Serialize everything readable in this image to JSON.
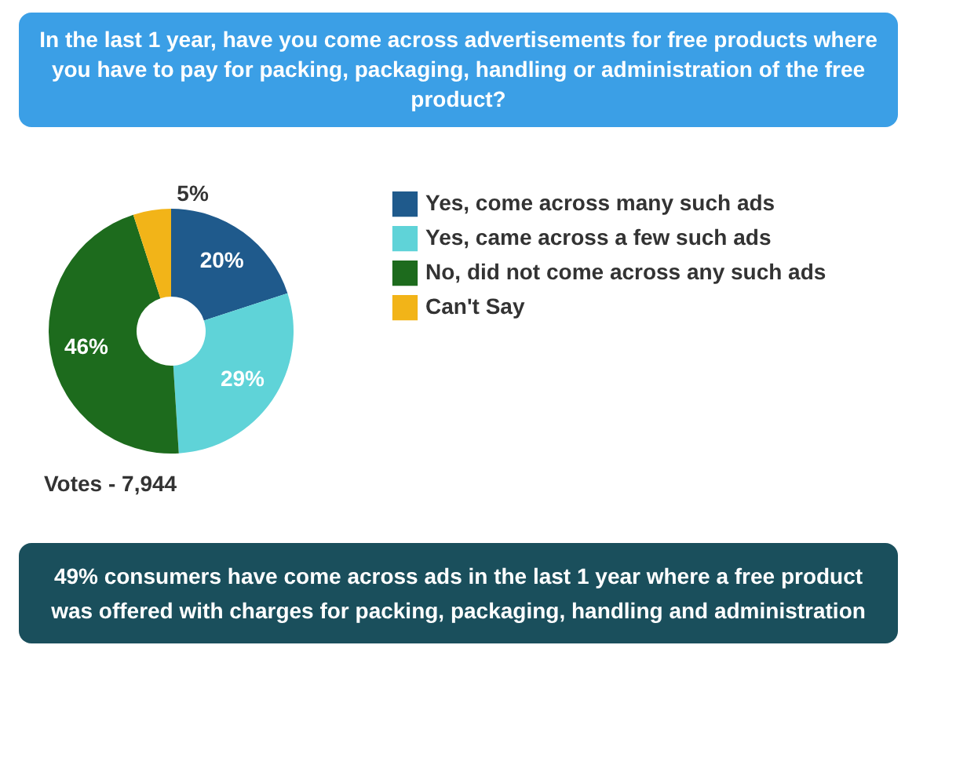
{
  "chart_data": {
    "type": "donut",
    "title": "In the last 1 year, have you come across advertisements for free products where you have to pay for packing, packaging, handling or administration of the free product?",
    "categories": [
      "Yes, come across many such ads",
      "Yes, came across a few such ads",
      "No, did not come across any such ads",
      "Can't Say"
    ],
    "values": [
      20,
      29,
      46,
      5
    ],
    "colors": [
      "#1f5a8c",
      "#5fd3d8",
      "#1d6b1d",
      "#f2b418"
    ],
    "value_labels": [
      "20%",
      "29%",
      "46%",
      "5%"
    ],
    "legend": "right",
    "annotations": [
      "Votes - 7,944",
      "49% consumers have come across ads in the last 1 year where a free product was offered with charges for packing, packaging, handling and administration"
    ]
  }
}
